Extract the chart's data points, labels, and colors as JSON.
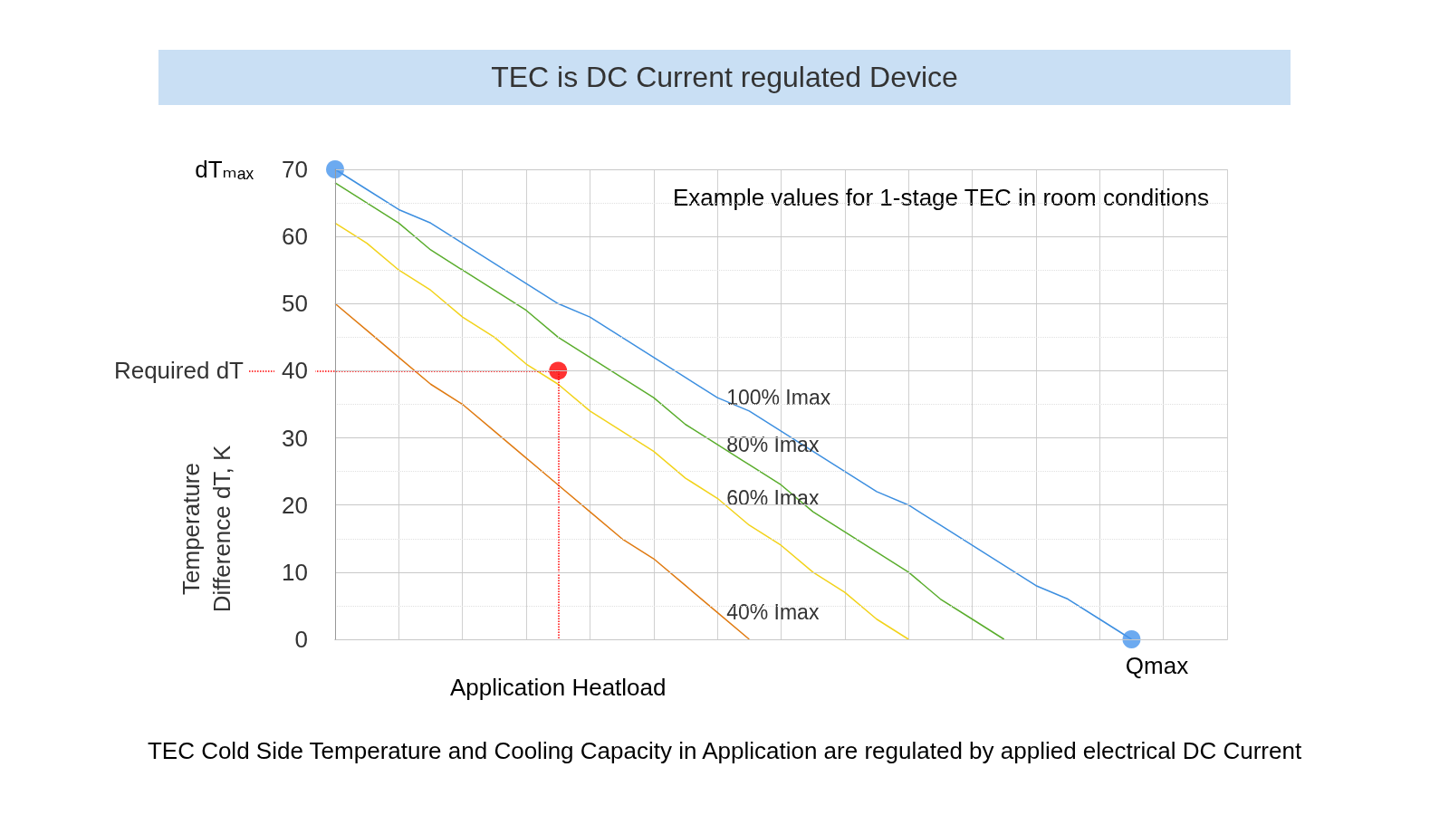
{
  "chart_data": {
    "type": "line",
    "title": "TEC is DC Current regulated Device",
    "ylabel": "Temperature\nDifference dT, K",
    "categories": [
      null,
      null,
      null,
      null,
      null,
      null,
      null,
      null,
      null,
      null,
      null,
      null,
      null,
      null,
      null,
      null,
      null,
      null,
      null,
      null,
      null,
      null,
      null,
      null,
      null,
      null,
      null,
      null,
      null
    ],
    "ylim": [
      0,
      70
    ],
    "yticks": [
      0,
      10,
      20,
      30,
      40,
      50,
      60,
      70
    ],
    "grid": true,
    "legend": false,
    "line_style": "solid",
    "series": [
      {
        "name": "100% Imax",
        "color": "#3d8fe0",
        "marker": "none",
        "values": [
          70,
          67,
          64,
          62,
          59,
          56,
          53,
          50,
          48,
          45,
          42,
          39,
          36,
          34,
          31,
          28,
          25,
          22,
          20,
          17,
          14,
          11,
          8,
          6,
          3,
          0,
          null,
          null,
          null
        ]
      },
      {
        "name": "80% Imax",
        "color": "#5aad2d",
        "marker": "none",
        "values": [
          68,
          65,
          62,
          58,
          55,
          52,
          49,
          45,
          42,
          39,
          36,
          32,
          29,
          26,
          23,
          19,
          16,
          13,
          10,
          6,
          3,
          0,
          null,
          null,
          null,
          null,
          null,
          null,
          null
        ]
      },
      {
        "name": "60% Imax",
        "color": "#f2d31b",
        "marker": "none",
        "values": [
          62,
          59,
          55,
          52,
          48,
          45,
          41,
          38,
          34,
          31,
          28,
          24,
          21,
          17,
          14,
          10,
          7,
          3,
          0,
          null,
          null,
          null,
          null,
          null,
          null,
          null,
          null,
          null,
          null
        ]
      },
      {
        "name": "40% Imax",
        "color": "#e07b12",
        "marker": "none",
        "values": [
          50,
          46,
          42,
          38,
          35,
          31,
          27,
          23,
          19,
          15,
          12,
          8,
          4,
          0,
          null,
          null,
          null,
          null,
          null,
          null,
          null,
          null,
          null,
          null,
          null,
          null,
          null,
          null,
          null
        ]
      },
      {
        "type": "scatter",
        "color": "#4795ec",
        "marker": "circle",
        "values": [
          70,
          null,
          null,
          null,
          null,
          null,
          null,
          null,
          null,
          null,
          null,
          null,
          null,
          null,
          null,
          null,
          null,
          null,
          null,
          null,
          null,
          null,
          null,
          null,
          null,
          0,
          null,
          null,
          null
        ]
      },
      {
        "type": "scatter",
        "color": "#ff0000",
        "marker": "circle",
        "values": [
          null,
          null,
          null,
          null,
          null,
          null,
          null,
          40,
          null,
          null,
          null,
          null,
          null,
          null,
          null,
          null,
          null,
          null,
          null,
          null,
          null,
          null,
          null,
          null,
          null,
          null,
          null,
          null,
          null
        ]
      }
    ],
    "ref_lines": [
      {
        "axis": "y",
        "value": 40,
        "label": "Required dT",
        "color": "#ff0000",
        "line_style": "dotted"
      }
    ],
    "annotations": [
      "Example values for 1-stage TEC in room conditions",
      "dTₘₐₓ",
      "Qmax",
      "Application Heatload",
      "TEC Cold Side Temperature and Cooling Capacity in Application are regulated by applied electrical DC Current"
    ]
  }
}
